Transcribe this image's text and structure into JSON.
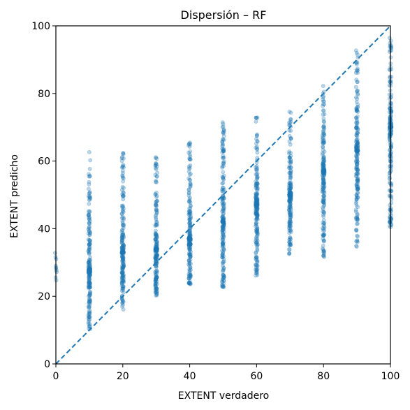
{
  "chart_data": {
    "type": "scatter",
    "title": "Dispersión – RF",
    "xlabel": "EXTENT verdadero",
    "ylabel": "EXTENT predicho",
    "xlim": [
      0,
      100
    ],
    "ylim": [
      0,
      100
    ],
    "xticks": [
      0,
      20,
      40,
      60,
      80,
      100
    ],
    "yticks": [
      0,
      20,
      40,
      60,
      80,
      100
    ],
    "grid": false,
    "point_color": "#1f77b4",
    "point_alpha": 0.3,
    "reference_line": {
      "style": "dashed",
      "from": [
        0,
        0
      ],
      "to": [
        100,
        100
      ],
      "color": "#1f77b4"
    },
    "columns": [
      {
        "x": 0,
        "y_min": 24,
        "y_max": 35,
        "y_center": 28
      },
      {
        "x": 10,
        "y_min": 10,
        "y_max": 63,
        "y_center": 28
      },
      {
        "x": 20,
        "y_min": 16,
        "y_max": 65,
        "y_center": 33
      },
      {
        "x": 30,
        "y_min": 20,
        "y_max": 62,
        "y_center": 34
      },
      {
        "x": 40,
        "y_min": 23,
        "y_max": 66,
        "y_center": 37
      },
      {
        "x": 50,
        "y_min": 22,
        "y_max": 72,
        "y_center": 42
      },
      {
        "x": 60,
        "y_min": 26,
        "y_max": 73,
        "y_center": 47
      },
      {
        "x": 70,
        "y_min": 32,
        "y_max": 75,
        "y_center": 50
      },
      {
        "x": 80,
        "y_min": 31,
        "y_max": 83,
        "y_center": 57
      },
      {
        "x": 90,
        "y_min": 33,
        "y_max": 93,
        "y_center": 63
      },
      {
        "x": 100,
        "y_min": 40,
        "y_max": 97,
        "y_center": 70
      }
    ]
  }
}
